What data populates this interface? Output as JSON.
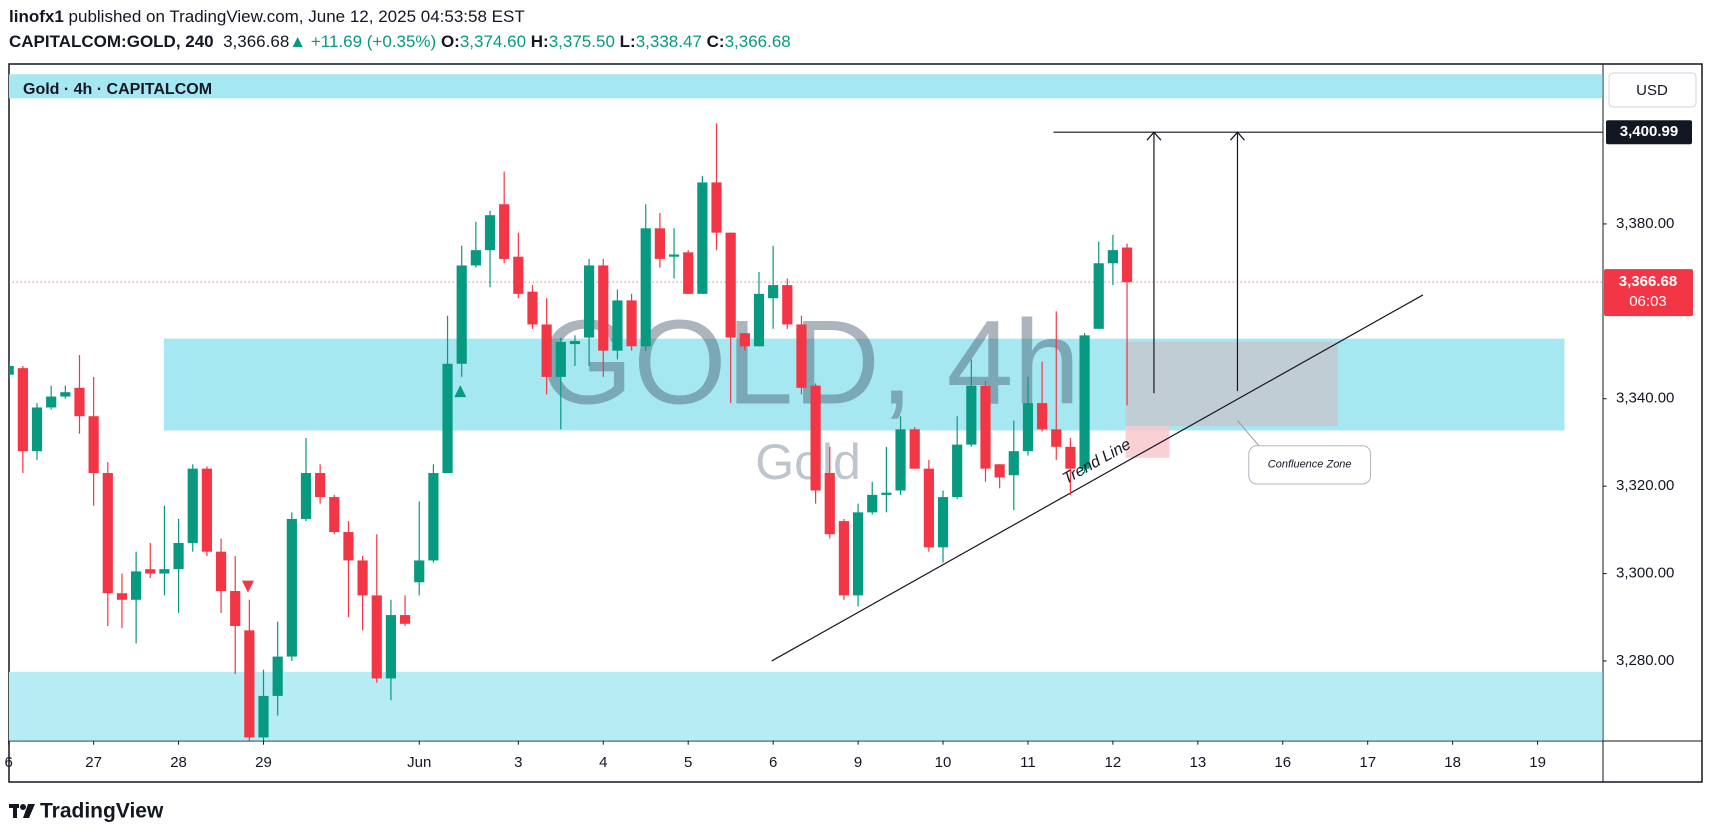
{
  "header": {
    "author": "linofx1",
    "published": "published on TradingView.com, June 12, 2025 04:53:58 EST",
    "symbol": "CAPITALCOM:GOLD, 240",
    "price": "3,366.68",
    "change": "▲ +11.69 (+0.35%)",
    "ohlc": [
      {
        "label": "O:",
        "value": "3,374.60"
      },
      {
        "label": "H:",
        "value": "3,375.50"
      },
      {
        "label": "L:",
        "value": "3,338.47"
      },
      {
        "label": "C:",
        "value": "3,366.68"
      }
    ]
  },
  "footer": "TradingView",
  "chart_data": {
    "type": "candlestick",
    "legend": "Gold · 4h · CAPITALCOM",
    "currency": "USD",
    "watermark": {
      "title": "GOLD, 4h",
      "subtitle": "Gold"
    },
    "colors": {
      "up": "#089981",
      "down": "#f23645"
    },
    "candles": {
      "open": [
        3345.5,
        3347,
        3328,
        3338,
        3340.5,
        3342.5,
        3336,
        3323,
        3295.5,
        3294,
        3301,
        3300,
        3301,
        3307,
        3324,
        3305,
        3296,
        3287,
        3262.5,
        3272,
        3281,
        3312.5,
        3323,
        3317.5,
        3309.5,
        3303,
        3295,
        3276,
        3290.5,
        3298,
        3303,
        3323,
        3348,
        3370.5,
        3374,
        3384.5,
        3372.5,
        3364.5,
        3357,
        3345,
        3352.5,
        3354,
        3370.5,
        3351,
        3362.5,
        3352,
        3379,
        3372.5,
        3373.5,
        3364,
        3389.5,
        3378,
        3355,
        3352,
        3363,
        3366,
        3357,
        3343,
        3323,
        3312,
        3295,
        3314,
        3318,
        3319,
        3333,
        3324,
        3306,
        3317.5,
        3329.5,
        3343,
        3325,
        3322.5,
        3328,
        3339,
        3333,
        3329,
        3324,
        3356,
        3371,
        3374.6
      ],
      "high": [
        3348.5,
        3347.5,
        3339,
        3343,
        3343,
        3350,
        3345,
        3325.5,
        3300,
        3305,
        3307,
        3315.5,
        3312.5,
        3325,
        3324.5,
        3308,
        3304,
        3294,
        3278,
        3289,
        3314,
        3331,
        3325,
        3318,
        3312,
        3304,
        3309,
        3294,
        3295,
        3316.5,
        3325,
        3359,
        3375,
        3380.5,
        3383,
        3392,
        3378,
        3366,
        3363,
        3354,
        3354.5,
        3372,
        3372,
        3365,
        3364,
        3384.5,
        3382.5,
        3379,
        3374,
        3391,
        3403,
        3378,
        3355,
        3369,
        3375,
        3367.5,
        3359,
        3343.5,
        3329,
        3312.5,
        3316,
        3321,
        3329,
        3336,
        3333.5,
        3326,
        3319,
        3336,
        3349,
        3344,
        3325,
        3335,
        3345,
        3348.5,
        3360,
        3331,
        3355,
        3376,
        3377.5,
        3375.5
      ],
      "low": [
        3344.5,
        3323,
        3326,
        3337.5,
        3340,
        3332,
        3315.5,
        3288,
        3287.5,
        3284,
        3299,
        3295,
        3291,
        3305,
        3304,
        3291,
        3277,
        3261.5,
        3261.5,
        3267.5,
        3280,
        3312,
        3316,
        3309,
        3290,
        3287,
        3275,
        3271,
        3288,
        3295,
        3302.5,
        3323,
        3345,
        3370,
        3365.5,
        3371,
        3363,
        3356,
        3341,
        3333,
        3347.5,
        3347.5,
        3345,
        3349,
        3351,
        3351,
        3370,
        3367.5,
        3364,
        3364,
        3374,
        3339,
        3351,
        3352,
        3356,
        3356,
        3341,
        3316,
        3308,
        3294,
        3292.5,
        3313.5,
        3314,
        3318,
        3324,
        3305,
        3302.5,
        3317,
        3329,
        3321,
        3319.5,
        3314.5,
        3327,
        3332.5,
        3326,
        3318,
        3323,
        3356,
        3366,
        3338.47
      ],
      "close": [
        3347.5,
        3328,
        3338,
        3340.5,
        3341.5,
        3336,
        3323,
        3295.5,
        3294,
        3300.5,
        3300,
        3301,
        3307,
        3324,
        3305,
        3296,
        3288,
        3262.5,
        3272,
        3281,
        3312.5,
        3323,
        3317.5,
        3309.5,
        3303,
        3295,
        3276,
        3290.5,
        3288.5,
        3303,
        3323,
        3348,
        3370.5,
        3374,
        3382,
        3372,
        3364,
        3357,
        3345,
        3353,
        3353.2,
        3370.5,
        3351,
        3362.5,
        3352,
        3379,
        3372,
        3373,
        3364,
        3389.5,
        3378,
        3354,
        3352,
        3364,
        3366,
        3357,
        3342.5,
        3319,
        3309,
        3295,
        3314,
        3318,
        3318.5,
        3333,
        3324,
        3306,
        3317.5,
        3329.5,
        3343,
        3324,
        3322,
        3328,
        3339,
        3333,
        3329,
        3324,
        3354.5,
        3371,
        3374,
        3366.68
      ]
    },
    "xlim": [
      0,
      112.6
    ],
    "ylim": [
      3261.75,
      3415.75
    ],
    "xticks": [
      {
        "value": 0,
        "label": "6"
      },
      {
        "value": 6,
        "label": "27"
      },
      {
        "value": 12,
        "label": "28"
      },
      {
        "value": 18,
        "label": "29"
      },
      {
        "value": 29,
        "label": "Jun"
      },
      {
        "value": 36,
        "label": "3"
      },
      {
        "value": 42,
        "label": "4"
      },
      {
        "value": 48,
        "label": "5"
      },
      {
        "value": 54,
        "label": "6"
      },
      {
        "value": 60,
        "label": "9"
      },
      {
        "value": 66,
        "label": "10"
      },
      {
        "value": 72,
        "label": "11"
      },
      {
        "value": 78,
        "label": "12"
      },
      {
        "value": 84,
        "label": "13"
      },
      {
        "value": 90,
        "label": "16"
      },
      {
        "value": 96,
        "label": "17"
      },
      {
        "value": 102,
        "label": "18"
      },
      {
        "value": 108,
        "label": "19"
      }
    ],
    "yticks": [
      {
        "value": 3280,
        "label": "3,280.00"
      },
      {
        "value": 3300,
        "label": "3,300.00"
      },
      {
        "value": 3320,
        "label": "3,320.00"
      },
      {
        "value": 3340,
        "label": "3,340.00"
      },
      {
        "value": 3380,
        "label": "3,380.00"
      }
    ],
    "zones": [
      {
        "x": [
          0,
          112.6
        ],
        "y": [
          3408.75,
          3414.25
        ],
        "color": "#a6e8f1"
      },
      {
        "x": [
          10.96,
          109.9
        ],
        "y": [
          3332.75,
          3353.75
        ],
        "color": "#a6e8f1"
      },
      {
        "x": [
          0,
          112.6
        ],
        "y": [
          3261.75,
          3277.5
        ],
        "color": "#b6ecf3"
      }
    ],
    "boxes": [
      {
        "x": [
          78.9,
          93.9
        ],
        "y": [
          3333.75,
          3353
        ],
        "color": "#c5c8cf"
      },
      {
        "x": [
          78.9,
          82
        ],
        "y": [
          3326.5,
          3333.75
        ],
        "color": "#f8c8cc"
      }
    ],
    "trend_line": {
      "label": "Trend Line",
      "x": [
        53.9,
        99.9
      ],
      "y": [
        3280,
        3363.75
      ]
    },
    "level": {
      "value": 3400.99,
      "label": "3,400.99",
      "x": 73.8
    },
    "arrows": [
      {
        "x": 80.9,
        "from": 3341.25
      },
      {
        "x": 86.8,
        "from": 3341.75
      }
    ],
    "callout": {
      "text": "Confluence Zone",
      "x": [
        87.6,
        96.2
      ],
      "y": [
        3320.5,
        3329.25
      ],
      "anchor": [
        86.8,
        3335
      ]
    },
    "markers": [
      {
        "x": 31.9,
        "y": 3341.75,
        "color": "#089981",
        "dir": "up"
      },
      {
        "x": 16.9,
        "y": 3297,
        "color": "#f23645",
        "dir": "down"
      }
    ],
    "last_price": {
      "value": 3366.68,
      "label": "3,366.68",
      "countdown": "06:03"
    }
  }
}
